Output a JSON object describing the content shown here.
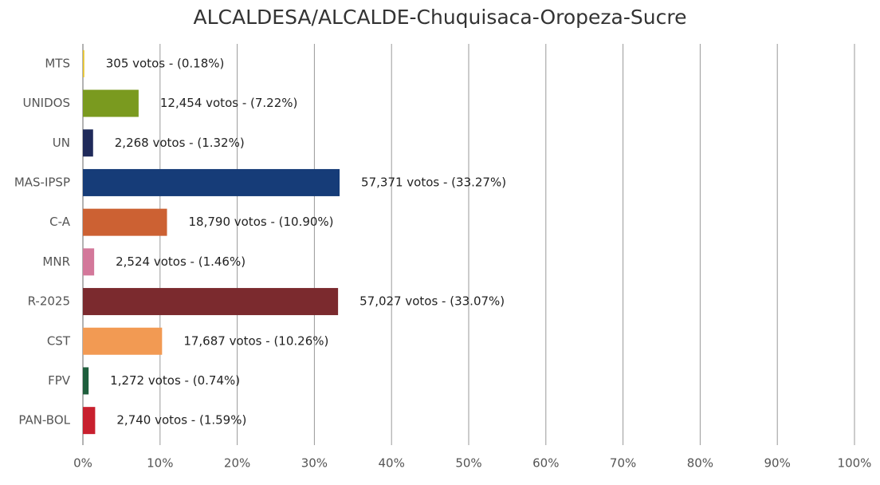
{
  "chart_data": {
    "type": "hbar",
    "title": "ALCALDESA/ALCALDE-Chuquisaca-Oropeza-Sucre",
    "categories": [
      "MTS",
      "UNIDOS",
      "UN",
      "MAS-IPSP",
      "C-A",
      "MNR",
      "R-2025",
      "CST",
      "FPV",
      "PAN-BOL"
    ],
    "values": [
      0.18,
      7.22,
      1.32,
      33.27,
      10.9,
      1.46,
      33.07,
      10.26,
      0.74,
      1.59
    ],
    "value_labels": [
      "305 votos - (0.18%)",
      "12,454 votos - (7.22%)",
      "2,268 votos - (1.32%)",
      "57,371 votos - (33.27%)",
      "18,790 votos - (10.90%)",
      "2,524 votos - (1.46%)",
      "57,027 votos - (33.07%)",
      "17,687 votos - (10.26%)",
      "1,272 votos - (0.74%)",
      "2,740 votos - (1.59%)"
    ],
    "colors": [
      "#e6c229",
      "#7a9a1f",
      "#1f2a5a",
      "#163c78",
      "#cc6133",
      "#d3789a",
      "#7b2a2e",
      "#f29a53",
      "#1e5e3c",
      "#c8202e"
    ],
    "xlim": [
      0,
      100
    ],
    "xticks": [
      {
        "value": 0,
        "label": "0%"
      },
      {
        "value": 10,
        "label": "10%"
      },
      {
        "value": 20,
        "label": "20%"
      },
      {
        "value": 30,
        "label": "30%"
      },
      {
        "value": 40,
        "label": "40%"
      },
      {
        "value": 50,
        "label": "50%"
      },
      {
        "value": 60,
        "label": "60%"
      },
      {
        "value": 70,
        "label": "70%"
      },
      {
        "value": 80,
        "label": "80%"
      },
      {
        "value": 90,
        "label": "90%"
      },
      {
        "value": 100,
        "label": "100%"
      }
    ],
    "grid": true
  }
}
